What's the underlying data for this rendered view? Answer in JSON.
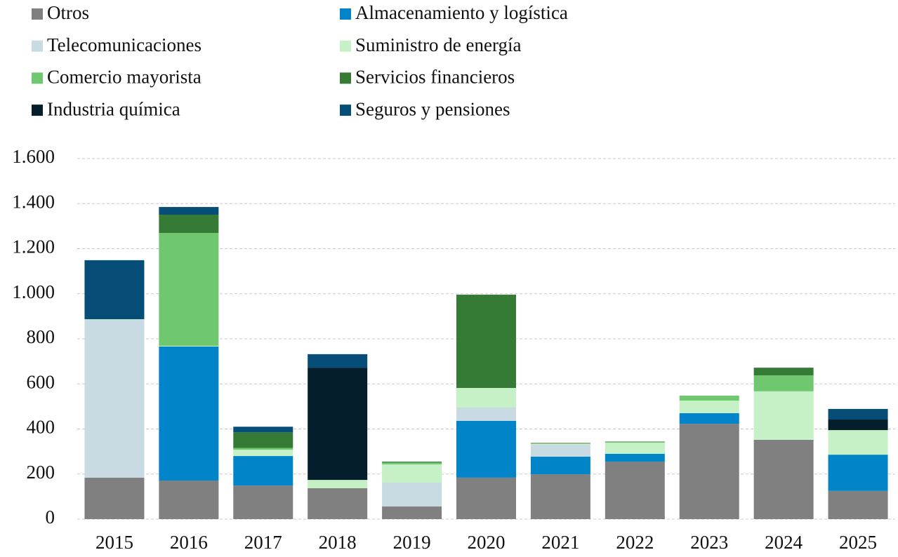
{
  "chart_data": {
    "type": "stacked_bar",
    "categories": [
      "2015",
      "2016",
      "2017",
      "2018",
      "2019",
      "2020",
      "2021",
      "2022",
      "2023",
      "2024",
      "2025"
    ],
    "series": [
      {
        "name": "Otros",
        "color": "#808080",
        "values": [
          184,
          171,
          149,
          137,
          56,
          184,
          199,
          255,
          423,
          352,
          125
        ]
      },
      {
        "name": "Almacenamiento y logística",
        "color": "#0284c9",
        "values": [
          0,
          595,
          131,
          0,
          0,
          252,
          78,
          35,
          47,
          0,
          161
        ]
      },
      {
        "name": "Telecomunicaciones",
        "color": "#c8dae2",
        "values": [
          700,
          0,
          0,
          0,
          106,
          59,
          53,
          0,
          0,
          0,
          0
        ]
      },
      {
        "name": "Suministro de energía",
        "color": "#c6f0c6",
        "values": [
          3,
          3,
          28,
          37,
          81,
          87,
          5,
          49,
          56,
          215,
          109
        ]
      },
      {
        "name": "Comercio mayorista",
        "color": "#6fc76f",
        "values": [
          0,
          501,
          8,
          0,
          8,
          0,
          0,
          3,
          22,
          71,
          0
        ]
      },
      {
        "name": "Servicios financieros",
        "color": "#357a35",
        "values": [
          0,
          81,
          69,
          0,
          4,
          414,
          3,
          2,
          0,
          34,
          0
        ]
      },
      {
        "name": "Industria química",
        "color": "#051e2b",
        "values": [
          0,
          0,
          0,
          498,
          0,
          0,
          0,
          0,
          0,
          0,
          47
        ]
      },
      {
        "name": "Seguros y pensiones",
        "color": "#064e78",
        "values": [
          262,
          34,
          25,
          60,
          0,
          0,
          0,
          0,
          0,
          0,
          47
        ]
      }
    ],
    "ylim": [
      0,
      1600
    ],
    "yticks": [
      0,
      200,
      400,
      600,
      800,
      {
        "value": 1000,
        "label": "1.000"
      },
      {
        "value": 1200,
        "label": "1.200"
      },
      {
        "value": 1400,
        "label": "1.400"
      },
      {
        "value": 1600,
        "label": "1.600"
      }
    ],
    "grid": true,
    "legend": "top"
  }
}
